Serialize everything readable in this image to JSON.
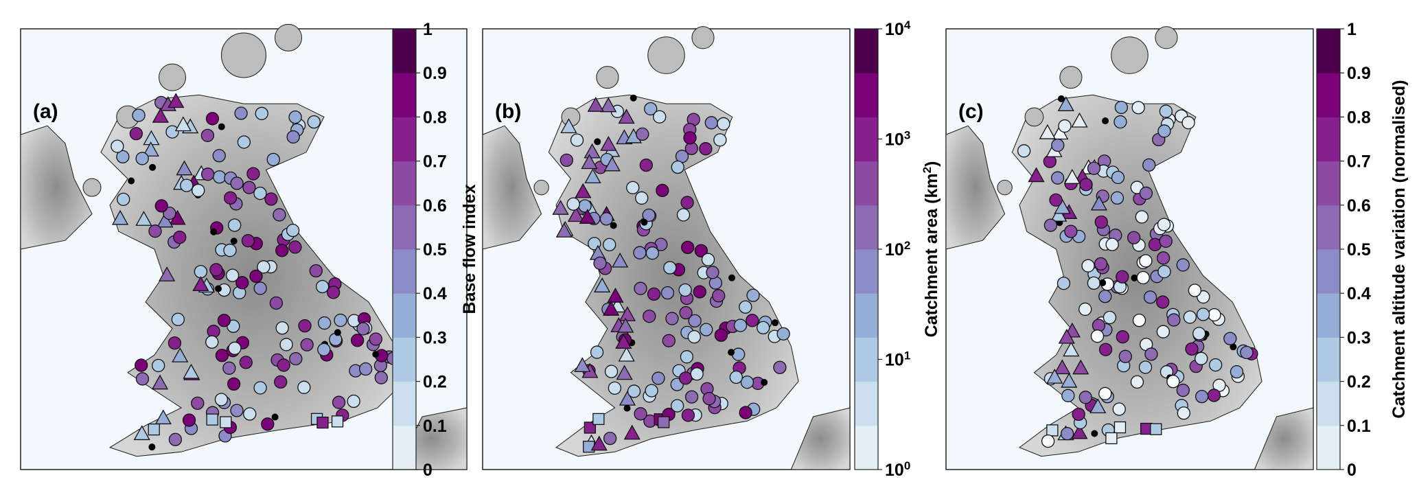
{
  "maps": [
    {
      "panel_label": "(a)",
      "colorbar": {
        "title": "Base flow index",
        "scale": "linear",
        "ticks": [
          "0",
          "0.1",
          "0.2",
          "0.3",
          "0.4",
          "0.5",
          "0.6",
          "0.7",
          "0.8",
          "0.9",
          "1"
        ]
      }
    },
    {
      "panel_label": "(b)",
      "colorbar": {
        "title_prefix": "Catchment area (km",
        "title_superscript": "2",
        "title_suffix": ")",
        "scale": "log",
        "ticks": [
          {
            "base": "10",
            "exp": "0"
          },
          {
            "base": "10",
            "exp": "1"
          },
          {
            "base": "10",
            "exp": "2"
          },
          {
            "base": "10",
            "exp": "3"
          },
          {
            "base": "10",
            "exp": "4"
          }
        ]
      }
    },
    {
      "panel_label": "(c)",
      "colorbar": {
        "title": "Catchment altitude variation (normalised)",
        "scale": "linear",
        "ticks": [
          "0",
          "0.1",
          "0.2",
          "0.3",
          "0.4",
          "0.5",
          "0.6",
          "0.7",
          "0.8",
          "0.9",
          "1"
        ]
      }
    }
  ],
  "colors": {
    "colormap": [
      "#f7fbfd",
      "#e3eef6",
      "#cbdfee",
      "#aecbe3",
      "#96aed5",
      "#8c8dc6",
      "#8c6bb1",
      "#8c4aa2",
      "#86208d",
      "#7a0177",
      "#4d004b"
    ],
    "sea": "#f3f8fc",
    "land_low": "#e2e2e2",
    "land_high": "#9a9a9a",
    "coastline": "#1a1a1a",
    "gauge_dot": "#000000"
  },
  "legend_markers": [
    "circle",
    "triangle",
    "square",
    "dot"
  ]
}
